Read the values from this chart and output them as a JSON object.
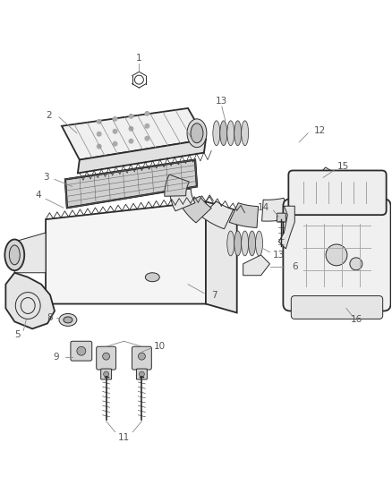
{
  "background_color": "#ffffff",
  "line_color": "#2a2a2a",
  "label_color": "#2a2a2a",
  "figsize": [
    4.38,
    5.33
  ],
  "dpi": 100,
  "lw_main": 1.3,
  "lw_thin": 0.7,
  "lw_leader": 0.6,
  "label_fontsize": 7.5,
  "leader_color": "#555555"
}
